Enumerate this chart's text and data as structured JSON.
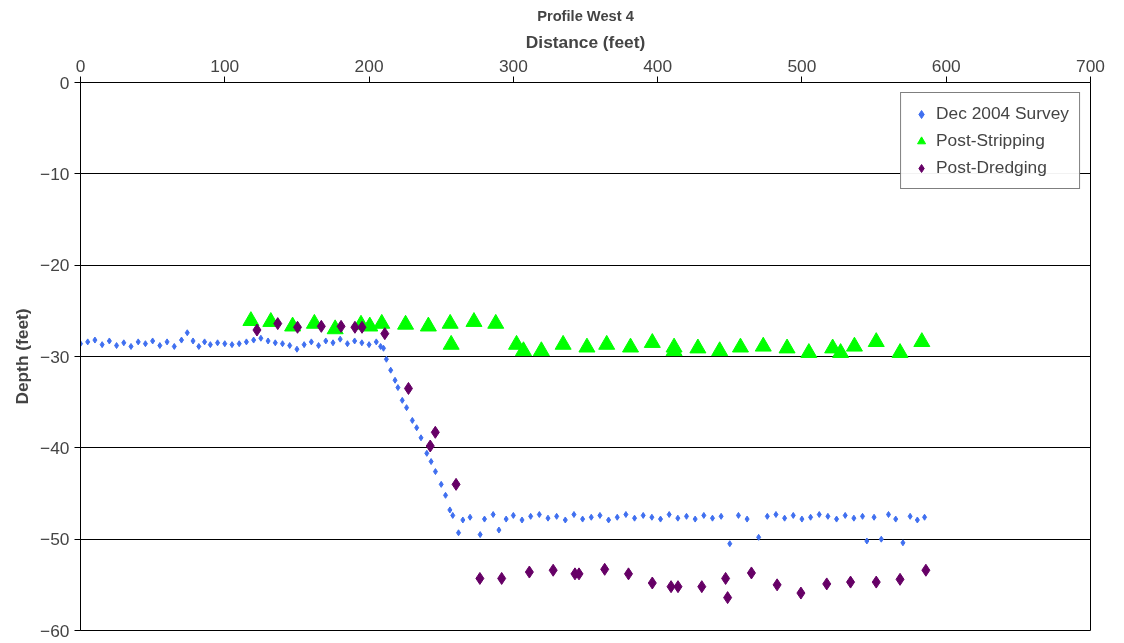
{
  "chart_data": {
    "type": "scatter",
    "title": "Profile West 4",
    "xlabel": "Distance (feet)",
    "ylabel": "Depth (feet)",
    "xlim": [
      0,
      700
    ],
    "ylim": [
      -60,
      0
    ],
    "xticks": [
      0,
      100,
      200,
      300,
      400,
      500,
      600,
      700
    ],
    "yticks": [
      -60,
      -50,
      -40,
      -30,
      -20,
      -10,
      0
    ],
    "grid": "y",
    "legend": "top right",
    "series": [
      {
        "name": "Dec 2004 Survey",
        "color": "#3f6ff0",
        "marker": "diamond",
        "x": [
          0,
          5,
          10,
          15,
          20,
          25,
          30,
          35,
          40,
          45,
          50,
          55,
          60,
          65,
          70,
          74,
          78,
          82,
          86,
          90,
          95,
          100,
          105,
          110,
          115,
          120,
          125,
          130,
          135,
          140,
          145,
          150,
          155,
          160,
          165,
          170,
          175,
          180,
          185,
          190,
          195,
          200,
          205,
          208,
          210,
          212,
          215,
          218,
          220,
          223,
          226,
          230,
          233,
          236,
          240,
          243,
          246,
          250,
          253,
          256,
          258,
          262,
          265,
          270,
          277,
          280,
          286,
          290,
          295,
          300,
          306,
          312,
          318,
          324,
          330,
          336,
          342,
          348,
          354,
          360,
          366,
          372,
          378,
          384,
          390,
          396,
          402,
          408,
          414,
          420,
          426,
          432,
          438,
          444,
          450,
          456,
          462,
          470,
          476,
          482,
          488,
          494,
          500,
          506,
          512,
          518,
          524,
          530,
          536,
          542,
          545,
          550,
          555,
          560,
          565,
          570,
          575,
          580,
          585
        ],
        "values": [
          -28.6,
          -28.4,
          -28.2,
          -28.7,
          -28.3,
          -28.8,
          -28.5,
          -28.9,
          -28.4,
          -28.6,
          -28.3,
          -28.8,
          -28.4,
          -28.9,
          -28.2,
          -27.4,
          -28.3,
          -28.9,
          -28.4,
          -28.7,
          -28.5,
          -28.6,
          -28.7,
          -28.6,
          -28.4,
          -28.2,
          -28.0,
          -28.3,
          -28.5,
          -28.6,
          -28.8,
          -29.2,
          -28.7,
          -28.4,
          -28.8,
          -28.3,
          -28.5,
          -28.1,
          -28.6,
          -28.3,
          -28.5,
          -28.7,
          -28.4,
          -28.9,
          -29.1,
          -30.3,
          -31.5,
          -32.6,
          -33.4,
          -34.8,
          -35.6,
          -37.0,
          -37.8,
          -38.9,
          -40.6,
          -41.5,
          -42.6,
          -44.0,
          -45.2,
          -46.8,
          -47.4,
          -49.3,
          -47.9,
          -47.6,
          -49.5,
          -47.8,
          -47.3,
          -49.0,
          -47.8,
          -47.4,
          -47.9,
          -47.5,
          -47.3,
          -47.7,
          -47.5,
          -47.9,
          -47.3,
          -47.8,
          -47.6,
          -47.4,
          -47.9,
          -47.6,
          -47.3,
          -47.7,
          -47.4,
          -47.6,
          -47.8,
          -47.3,
          -47.7,
          -47.5,
          -47.8,
          -47.4,
          -47.7,
          -47.5,
          -50.5,
          -47.4,
          -47.8,
          -49.8,
          -47.5,
          -47.3,
          -47.7,
          -47.4,
          -47.8,
          -47.6,
          -47.3,
          -47.5,
          -47.8,
          -47.4,
          -47.7,
          -47.5,
          -50.2,
          -47.6,
          -50.0,
          -47.3,
          -47.8,
          -50.4,
          -47.5,
          -47.9,
          -47.6
        ]
      },
      {
        "name": "Post-Stripping",
        "color": "#00ff00",
        "marker": "triangle",
        "x": [
          118.1,
          131.9,
          147.0,
          162.1,
          176.5,
          194.4,
          200.5,
          208.8,
          225.3,
          241.1,
          256.2,
          256.9,
          272.7,
          287.8,
          302.2,
          307.0,
          319.4,
          334.5,
          351.0,
          364.7,
          381.2,
          396.3,
          411.4,
          411.4,
          427.9,
          443.0,
          457.4,
          473.2,
          489.7,
          504.8,
          521.3,
          526.8,
          536.4,
          551.5,
          568.0,
          583.1
        ],
        "values": [
          -26.1,
          -26.2,
          -26.7,
          -26.4,
          -27.0,
          -26.5,
          -26.7,
          -26.4,
          -26.5,
          -26.7,
          -26.4,
          -28.7,
          -26.2,
          -26.4,
          -28.7,
          -29.4,
          -29.4,
          -28.7,
          -29.0,
          -28.7,
          -29.0,
          -28.5,
          -29.0,
          -29.4,
          -29.1,
          -29.4,
          -29.0,
          -28.9,
          -29.1,
          -29.6,
          -29.1,
          -29.6,
          -28.9,
          -28.4,
          -29.6,
          -28.4
        ]
      },
      {
        "name": "Post-Dredging",
        "color": "#660066",
        "marker": "diamond",
        "x": [
          122.3,
          136.7,
          150.4,
          166.9,
          180.6,
          190.2,
          195.1,
          210.9,
          227.3,
          242.4,
          245.9,
          260.3,
          276.8,
          291.9,
          311.1,
          327.6,
          342.7,
          345.5,
          363.3,
          379.8,
          396.3,
          409.3,
          414.1,
          430.6,
          447.1,
          448.5,
          465.0,
          482.8,
          499.3,
          517.2,
          533.7,
          551.5,
          568.0,
          585.9
        ],
        "values": [
          -27.1,
          -26.4,
          -26.8,
          -26.7,
          -26.7,
          -26.8,
          -26.8,
          -27.5,
          -33.5,
          -39.8,
          -38.3,
          -44.0,
          -54.3,
          -54.3,
          -53.6,
          -53.4,
          -53.8,
          -53.8,
          -53.3,
          -53.8,
          -54.8,
          -55.2,
          -55.2,
          -55.2,
          -54.3,
          -56.4,
          -53.7,
          -55.0,
          -55.9,
          -54.9,
          -54.7,
          -54.7,
          -54.4,
          -53.4
        ]
      }
    ]
  }
}
